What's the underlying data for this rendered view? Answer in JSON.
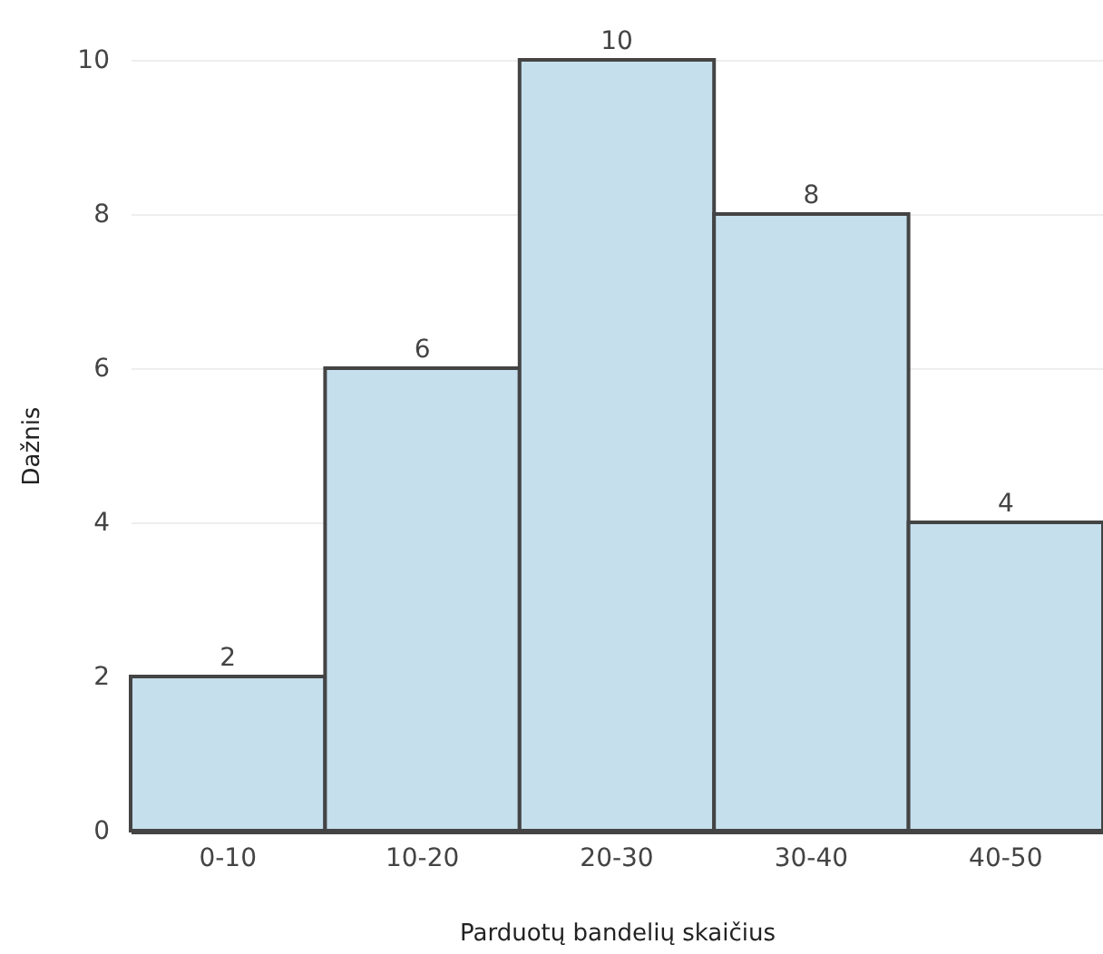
{
  "chart_data": {
    "type": "bar",
    "xlabel": "Parduotų bandelių skaičius",
    "ylabel": "Dažnis",
    "categories": [
      "0-10",
      "10-20",
      "20-30",
      "30-40",
      "40-50"
    ],
    "values": [
      2,
      6,
      10,
      8,
      4
    ],
    "color": "#c5dfec",
    "ylim": [
      0,
      10
    ],
    "yticks": [
      0,
      2,
      4,
      6,
      8,
      10
    ],
    "grid": "y",
    "data_labels": true
  }
}
